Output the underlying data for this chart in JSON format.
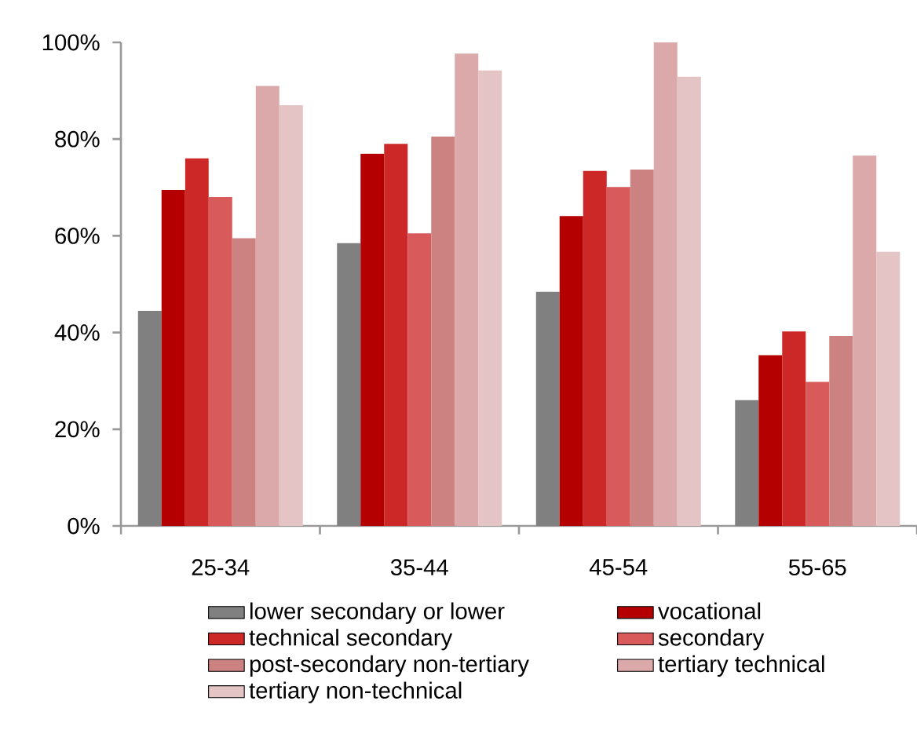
{
  "chart_data": {
    "type": "bar",
    "categories": [
      "25-34",
      "35-44",
      "45-54",
      "55-65"
    ],
    "series": [
      {
        "name": "lower secondary or lower",
        "color": "#808080",
        "values": [
          44.5,
          58.5,
          48.4,
          26
        ]
      },
      {
        "name": "vocational",
        "color": "#b40000",
        "values": [
          69.5,
          77,
          64.1,
          35.3
        ]
      },
      {
        "name": "technical secondary",
        "color": "#cc2828",
        "values": [
          76,
          79,
          73.4,
          40.2
        ]
      },
      {
        "name": "secondary",
        "color": "#d85a5a",
        "values": [
          68,
          60.5,
          70.1,
          29.8
        ]
      },
      {
        "name": "post-secondary non-tertiary",
        "color": "#cd8282",
        "values": [
          59.5,
          80.5,
          73.7,
          39.3
        ]
      },
      {
        "name": "tertiary technical",
        "color": "#dba9a9",
        "values": [
          91,
          97.7,
          100,
          76.6
        ]
      },
      {
        "name": "tertiary non-technical",
        "color": "#e4c4c4",
        "values": [
          87,
          94.2,
          92.9,
          56.7
        ]
      }
    ],
    "ylim": [
      0,
      100
    ],
    "yticks": [
      {
        "value": 0,
        "label": "0%"
      },
      {
        "value": 20,
        "label": "20%"
      },
      {
        "value": 40,
        "label": "40%"
      },
      {
        "value": 60,
        "label": "60%"
      },
      {
        "value": 80,
        "label": "80%"
      },
      {
        "value": 100,
        "label": "100%"
      }
    ],
    "grid": false,
    "legend": "bottom"
  }
}
